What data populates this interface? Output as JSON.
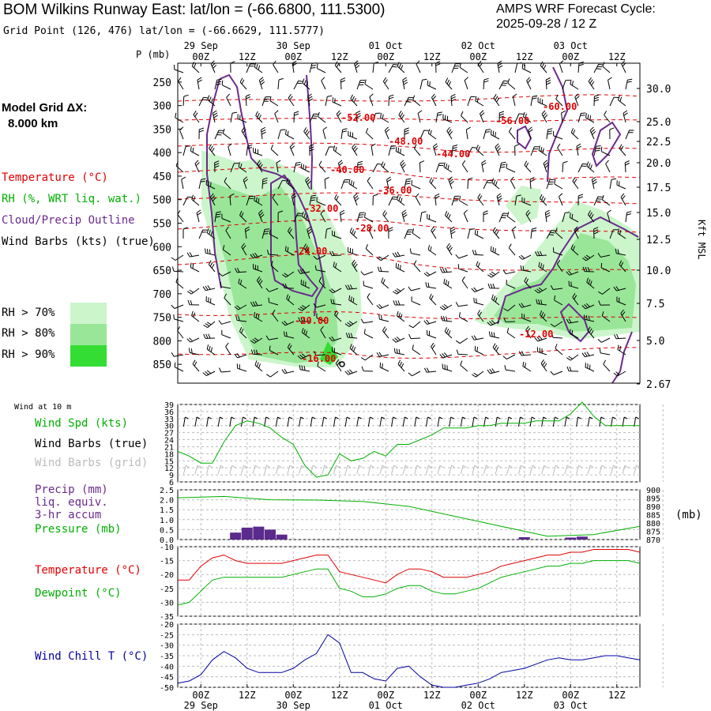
{
  "header": {
    "title": "BOM Wilkins Runway East:  lat/lon = (-66.6800, 111.5300)",
    "cycle_line1": "AMPS WRF Forecast Cycle:",
    "cycle_line2": "2025-09-28 / 12  Z",
    "grid_point": "Grid Point (126, 476) lat/lon = (-66.6629, 111.5777)",
    "model_grid_line1": "Model Grid ΔX:",
    "model_grid_line2": "8.000 km"
  },
  "colors": {
    "temperature": "#e00000",
    "rh": "#00b000",
    "cloud": "#6a2a8c",
    "barbs": "#000000",
    "barbs_grid": "#bbbbbb",
    "precip": "#5a2a8c",
    "windchill": "#0000a0",
    "rh70": "#ccf5cc",
    "rh80": "#99e699",
    "rh90": "#33dd33"
  },
  "chart_data": [
    {
      "type": "heatmap",
      "panel": "cross-section",
      "ylabel": "P (mb)",
      "y2label": "Kft MSL",
      "x_top_ticks": [
        "00Z",
        "12Z",
        "00Z",
        "12Z",
        "00Z",
        "12Z",
        "00Z",
        "12Z",
        "00Z",
        "12Z"
      ],
      "x_top_dates": [
        "29 Sep",
        "30 Sep",
        "01 Oct",
        "02 Oct",
        "03 Oct"
      ],
      "p_ticks": [
        250,
        300,
        350,
        400,
        450,
        500,
        550,
        600,
        650,
        700,
        750,
        800,
        850
      ],
      "kft_ticks": [
        "30.0",
        "25.0",
        "22.5",
        "20.0",
        "17.5",
        "15.0",
        "12.5",
        "10.0",
        "7.5",
        "5.0",
        "2.67"
      ],
      "legend": [
        "Temperature (°C)",
        "RH (%, WRT liq. wat.)",
        "Cloud/Precip Outline",
        "Wind Barbs (kts) (true)"
      ],
      "rh_legend": [
        "RH > 70%",
        "RH > 80%",
        "RH > 90%"
      ],
      "temperature_contour_labels": [
        "-60.00",
        "-56.00",
        "-52.00",
        "-48.00",
        "-44.00",
        "-40.00",
        "-36.00",
        "-32.00",
        "-28.00",
        "-24.00",
        "-20.00",
        "-16.00",
        "-12.00"
      ]
    },
    {
      "type": "line",
      "panel": "wind",
      "note_label": "Wind at 10 m",
      "labels": [
        "Wind Spd (kts)",
        "Wind Barbs (true)",
        "Wind Barbs (grid)"
      ],
      "y_ticks": [
        6,
        9,
        12,
        15,
        18,
        21,
        24,
        27,
        30,
        33,
        36,
        39
      ],
      "ylim": [
        6,
        39
      ],
      "x": [
        0,
        3,
        6,
        9,
        12,
        15,
        18,
        21,
        24,
        27,
        30,
        33,
        36,
        39,
        42,
        45,
        48,
        51,
        54,
        57,
        60,
        63,
        66,
        69,
        72,
        75,
        78,
        81,
        84,
        87,
        90,
        93,
        96,
        99,
        102,
        105,
        108,
        111,
        114,
        117,
        120
      ],
      "values": [
        19,
        17,
        14,
        14,
        23,
        30,
        32,
        31,
        29,
        25,
        22,
        13,
        8,
        9,
        18,
        15,
        16,
        19,
        17,
        22,
        22,
        24,
        26,
        29,
        29,
        29,
        30,
        30,
        31,
        31,
        31,
        32,
        32,
        32,
        35,
        40,
        34,
        30,
        30,
        30,
        30
      ]
    },
    {
      "type": "bar",
      "panel": "precip-pressure",
      "labels": [
        "Precip (mm)",
        "liq. equiv.",
        "3-hr accum",
        "Pressure (mb)"
      ],
      "y_ticks": [
        "0.0",
        "0.5",
        "1.0",
        "1.5",
        "2.0",
        "2.5"
      ],
      "ylim": [
        0,
        2.5
      ],
      "y2_ticks": [
        870,
        875,
        880,
        885,
        890,
        895,
        900
      ],
      "y2label": "(mb)",
      "precip_x": [
        15,
        18,
        21,
        24,
        27,
        90,
        102,
        105
      ],
      "precip_values": [
        0.35,
        0.6,
        0.65,
        0.5,
        0.25,
        0.12,
        0.1,
        0.15
      ],
      "pressure_x": [
        0,
        12,
        24,
        36,
        48,
        60,
        72,
        84,
        96,
        108,
        120
      ],
      "pressure_values": [
        895.2,
        896.0,
        894.0,
        893.8,
        893.0,
        890.0,
        884.0,
        878.0,
        872.0,
        873.0,
        878.0
      ]
    },
    {
      "type": "line",
      "panel": "temperature",
      "labels": [
        "Temperature (°C)",
        "Dewpoint (°C)"
      ],
      "y_ticks": [
        -35,
        -30,
        -25,
        -20,
        -15,
        -10
      ],
      "ylim": [
        -35,
        -10
      ],
      "x": [
        0,
        3,
        6,
        9,
        12,
        15,
        18,
        21,
        24,
        27,
        30,
        33,
        36,
        39,
        42,
        45,
        48,
        51,
        54,
        57,
        60,
        63,
        66,
        69,
        72,
        75,
        78,
        81,
        84,
        87,
        90,
        93,
        96,
        99,
        102,
        105,
        108,
        111,
        114,
        117,
        120
      ],
      "temperature": [
        -22,
        -22,
        -17,
        -14,
        -13,
        -15,
        -16,
        -16,
        -16,
        -16,
        -15,
        -14,
        -13,
        -13,
        -19,
        -20,
        -21,
        -22,
        -23,
        -20,
        -18,
        -18,
        -19,
        -21,
        -21,
        -21,
        -20,
        -19,
        -17,
        -16,
        -15,
        -14,
        -13,
        -13,
        -12,
        -12,
        -11,
        -11,
        -11,
        -11,
        -12
      ],
      "dewpoint": [
        -31,
        -30,
        -26,
        -22,
        -21,
        -21,
        -21,
        -21,
        -21,
        -21,
        -20,
        -19,
        -18,
        -18,
        -25,
        -26,
        -28,
        -28,
        -27,
        -25,
        -24,
        -24,
        -26,
        -27,
        -27,
        -26,
        -25,
        -23,
        -21,
        -20,
        -19,
        -18,
        -17,
        -17,
        -16,
        -16,
        -15,
        -15,
        -15,
        -15,
        -16
      ]
    },
    {
      "type": "line",
      "panel": "windchill",
      "labels": [
        "Wind Chill T (°C)"
      ],
      "y_ticks": [
        -50,
        -45,
        -40,
        -35,
        -30,
        -25,
        -20
      ],
      "ylim": [
        -50,
        -20
      ],
      "x": [
        0,
        3,
        6,
        9,
        12,
        15,
        18,
        21,
        24,
        27,
        30,
        33,
        36,
        39,
        42,
        45,
        48,
        51,
        54,
        57,
        60,
        63,
        66,
        69,
        72,
        75,
        78,
        81,
        84,
        87,
        90,
        93,
        96,
        99,
        102,
        105,
        108,
        111,
        114,
        117,
        120
      ],
      "values": [
        -48,
        -47,
        -44,
        -37,
        -33,
        -36,
        -41,
        -43,
        -43,
        -43,
        -41,
        -37,
        -34,
        -25,
        -29,
        -43,
        -43,
        -46,
        -47,
        -41,
        -40,
        -45,
        -49,
        -50,
        -50,
        -49,
        -48,
        -46,
        -43,
        -42,
        -41,
        -39,
        -37,
        -36,
        -37,
        -37,
        -36,
        -35,
        -35,
        -36,
        -37
      ],
      "x_bottom_ticks": [
        "00Z",
        "12Z",
        "00Z",
        "12Z",
        "00Z",
        "12Z",
        "00Z",
        "12Z",
        "00Z",
        "12Z"
      ],
      "x_bottom_dates": [
        "29 Sep",
        "30 Sep",
        "01 Oct",
        "02 Oct",
        "03 Oct"
      ]
    }
  ]
}
